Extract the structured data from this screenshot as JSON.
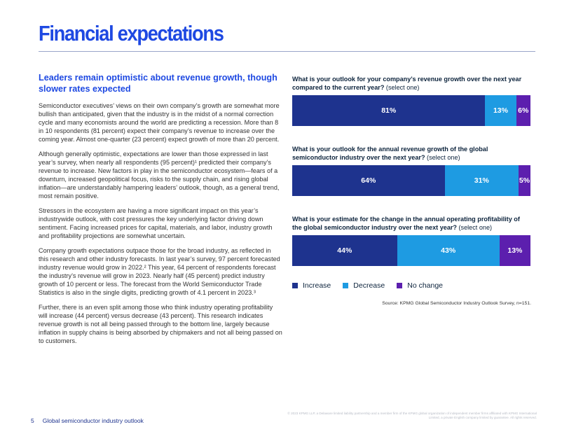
{
  "page": {
    "title": "Financial expectations",
    "page_number": "5",
    "footer_label": "Global semiconductor industry outlook",
    "legal_text": "© 2023 KPMG LLP, a Delaware limited liability partnership and a member firm of the KPMG global organization of independent member firms affiliated with KPMG International Limited, a private English company limited by guarantee. All rights reserved."
  },
  "article": {
    "subhead": "Leaders remain optimistic about revenue growth, though slower rates expected",
    "paragraphs": [
      "Semiconductor executives’ views on their own company’s growth are somewhat more bullish than anticipated, given that the industry is in the midst of a normal correction cycle and many economists around the world are predicting a recession. More than 8 in 10 respondents (81 percent) expect their company’s revenue to increase over the coming year. Almost one-quarter (23 percent) expect growth of more than 20 percent.",
      "Although generally optimistic, expectations are lower than those expressed in last year’s survey, when nearly all respondents (95 percent)¹ predicted their company’s revenue to increase. New factors in play in the semiconductor ecosystem—fears of a downturn, increased geopolitical focus, risks to the supply chain, and rising global inflation—are understandably hampering leaders’ outlook, though, as a general trend, most remain positive.",
      "Stressors in the ecosystem are having a more significant impact on this year’s industrywide outlook, with cost pressures the key underlying factor driving down sentiment. Facing increased prices for capital, materials, and labor, industry growth and profitability projections are somewhat uncertain.",
      "Company growth expectations outpace those for the broad industry, as reflected in this research and other industry forecasts. In last year’s survey, 97 percent forecasted industry revenue would grow in 2022.² This year, 64 percent of respondents forecast the industry’s revenue will grow in 2023. Nearly half (45 percent) predict industry growth of 10 percent or less. The forecast from the World Semiconductor Trade Statistics is also in the single digits, predicting growth of 4.1 percent in 2023.³",
      "Further, there is an even split among those who think industry operating profitability will increase (44 percent) versus decrease (43 percent). This research indicates revenue growth is not all being passed through to the bottom line, largely because inflation in supply chains is being absorbed by chipmakers and not all being passed on to customers."
    ]
  },
  "chart_data": [
    {
      "type": "bar",
      "orientation": "horizontal-stacked-100",
      "title_bold": "What is your outlook for your company’s revenue growth over the next year compared to the current year?",
      "title_note": "(select one)",
      "series": [
        {
          "name": "Increase",
          "value": 81,
          "label": "81%"
        },
        {
          "name": "Decrease",
          "value": 13,
          "label": "13%"
        },
        {
          "name": "No change",
          "value": 6,
          "label": "6%"
        }
      ]
    },
    {
      "type": "bar",
      "orientation": "horizontal-stacked-100",
      "title_bold": "What is your outlook for the annual revenue growth of the global semiconductor industry over the next year?",
      "title_note": "(select one)",
      "series": [
        {
          "name": "Increase",
          "value": 64,
          "label": "64%"
        },
        {
          "name": "Decrease",
          "value": 31,
          "label": "31%"
        },
        {
          "name": "No change",
          "value": 5,
          "label": "5%"
        }
      ]
    },
    {
      "type": "bar",
      "orientation": "horizontal-stacked-100",
      "title_bold": "What is your estimate for the change in the annual operating profitability of the global semiconductor industry over the next year?",
      "title_note": "(select one)",
      "series": [
        {
          "name": "Increase",
          "value": 44,
          "label": "44%"
        },
        {
          "name": "Decrease",
          "value": 43,
          "label": "43%"
        },
        {
          "name": "No change",
          "value": 13,
          "label": "13%"
        }
      ]
    }
  ],
  "legend": {
    "items": [
      {
        "label": "Increase",
        "color": "#1e338e"
      },
      {
        "label": "Decrease",
        "color": "#1e9be2"
      },
      {
        "label": "No change",
        "color": "#6d2077"
      }
    ]
  },
  "source": "Source: KPMG Global Semiconductor Industry Outlook Survey, n=151."
}
